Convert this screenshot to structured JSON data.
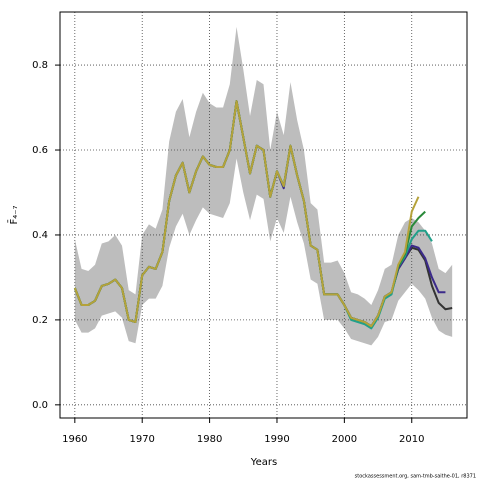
{
  "chart_data": {
    "type": "line",
    "x_label": "Years",
    "y_label": "F̄₄₋₇",
    "footnote": "stockassessment.org, sam-tmb-saithe-01, r8371",
    "x": [
      1960,
      1961,
      1962,
      1963,
      1964,
      1965,
      1966,
      1967,
      1968,
      1969,
      1970,
      1971,
      1972,
      1973,
      1974,
      1975,
      1976,
      1977,
      1978,
      1979,
      1980,
      1981,
      1982,
      1983,
      1984,
      1985,
      1986,
      1987,
      1988,
      1989,
      1990,
      1991,
      1992,
      1993,
      1994,
      1995,
      1996,
      1997,
      1998,
      1999,
      2000,
      2001,
      2002,
      2003,
      2004,
      2005,
      2006,
      2007,
      2008,
      2009,
      2010,
      2011,
      2012,
      2013,
      2014,
      2015,
      2016
    ],
    "band": {
      "color": "#bdbdbd",
      "upper": [
        0.39,
        0.32,
        0.315,
        0.33,
        0.38,
        0.385,
        0.4,
        0.375,
        0.27,
        0.26,
        0.4,
        0.425,
        0.415,
        0.46,
        0.62,
        0.69,
        0.72,
        0.63,
        0.69,
        0.735,
        0.71,
        0.7,
        0.7,
        0.755,
        0.89,
        0.79,
        0.68,
        0.765,
        0.755,
        0.6,
        0.69,
        0.635,
        0.76,
        0.67,
        0.6,
        0.475,
        0.46,
        0.335,
        0.335,
        0.34,
        0.31,
        0.265,
        0.26,
        0.25,
        0.235,
        0.27,
        0.32,
        0.33,
        0.4,
        0.43,
        0.44,
        0.43,
        0.41,
        0.38,
        0.32,
        0.31,
        0.33
      ],
      "lower": [
        0.2,
        0.17,
        0.17,
        0.18,
        0.21,
        0.215,
        0.22,
        0.205,
        0.15,
        0.145,
        0.235,
        0.25,
        0.25,
        0.28,
        0.37,
        0.42,
        0.45,
        0.4,
        0.435,
        0.465,
        0.45,
        0.445,
        0.44,
        0.475,
        0.58,
        0.5,
        0.435,
        0.495,
        0.485,
        0.385,
        0.44,
        0.405,
        0.49,
        0.43,
        0.38,
        0.295,
        0.285,
        0.2,
        0.2,
        0.2,
        0.18,
        0.155,
        0.15,
        0.145,
        0.14,
        0.16,
        0.195,
        0.2,
        0.245,
        0.265,
        0.285,
        0.27,
        0.25,
        0.205,
        0.175,
        0.165,
        0.16
      ]
    },
    "series": [
      {
        "color": "#333333",
        "values": [
          0.275,
          0.235,
          0.235,
          0.245,
          0.28,
          0.285,
          0.295,
          0.275,
          0.2,
          0.195,
          0.305,
          0.325,
          0.32,
          0.36,
          0.48,
          0.54,
          0.57,
          0.5,
          0.55,
          0.585,
          0.565,
          0.56,
          0.56,
          0.6,
          0.715,
          0.63,
          0.545,
          0.61,
          0.6,
          0.49,
          0.55,
          0.515,
          0.61,
          0.54,
          0.48,
          0.375,
          0.365,
          0.26,
          0.26,
          0.26,
          0.235,
          0.205,
          0.2,
          0.195,
          0.185,
          0.21,
          0.255,
          0.265,
          0.32,
          0.345,
          0.37,
          0.365,
          0.34,
          0.28,
          0.24,
          0.225,
          0.228
        ]
      },
      {
        "color": "#3b2a8a",
        "values": [
          0.275,
          0.235,
          0.235,
          0.245,
          0.28,
          0.285,
          0.295,
          0.275,
          0.2,
          0.195,
          0.305,
          0.325,
          0.32,
          0.36,
          0.48,
          0.54,
          0.57,
          0.5,
          0.55,
          0.585,
          0.565,
          0.56,
          0.56,
          0.6,
          0.715,
          0.63,
          0.545,
          0.61,
          0.6,
          0.49,
          0.55,
          0.51,
          0.61,
          0.54,
          0.48,
          0.375,
          0.365,
          0.26,
          0.26,
          0.26,
          0.235,
          0.205,
          0.2,
          0.195,
          0.185,
          0.21,
          0.255,
          0.265,
          0.32,
          0.345,
          0.375,
          0.37,
          0.345,
          0.3,
          0.265,
          0.265,
          null
        ]
      },
      {
        "color": "#21a08a",
        "values": [
          0.275,
          0.235,
          0.235,
          0.245,
          0.28,
          0.285,
          0.295,
          0.275,
          0.2,
          0.195,
          0.305,
          0.325,
          0.32,
          0.36,
          0.48,
          0.54,
          0.57,
          0.5,
          0.55,
          0.585,
          0.565,
          0.56,
          0.56,
          0.6,
          0.715,
          0.63,
          0.545,
          0.61,
          0.6,
          0.49,
          0.55,
          0.515,
          0.61,
          0.54,
          0.48,
          0.375,
          0.365,
          0.26,
          0.26,
          0.26,
          0.235,
          0.2,
          0.195,
          0.19,
          0.18,
          0.205,
          0.25,
          0.26,
          0.325,
          0.35,
          0.39,
          0.41,
          0.41,
          0.385,
          null,
          null,
          null
        ]
      },
      {
        "color": "#2a8a3a",
        "values": [
          0.275,
          0.235,
          0.235,
          0.245,
          0.28,
          0.285,
          0.295,
          0.275,
          0.2,
          0.195,
          0.305,
          0.325,
          0.32,
          0.36,
          0.48,
          0.54,
          0.57,
          0.5,
          0.55,
          0.585,
          0.565,
          0.56,
          0.56,
          0.6,
          0.715,
          0.63,
          0.545,
          0.61,
          0.6,
          0.49,
          0.55,
          0.515,
          0.61,
          0.54,
          0.48,
          0.375,
          0.365,
          0.26,
          0.26,
          0.26,
          0.235,
          0.205,
          0.2,
          0.195,
          0.185,
          0.21,
          0.255,
          0.265,
          0.325,
          0.355,
          0.42,
          0.44,
          0.455,
          null,
          null,
          null,
          null
        ]
      },
      {
        "color": "#b5a23a",
        "values": [
          0.275,
          0.235,
          0.235,
          0.245,
          0.28,
          0.285,
          0.295,
          0.275,
          0.2,
          0.195,
          0.305,
          0.325,
          0.32,
          0.36,
          0.48,
          0.54,
          0.57,
          0.5,
          0.55,
          0.585,
          0.565,
          0.56,
          0.56,
          0.6,
          0.715,
          0.63,
          0.545,
          0.61,
          0.6,
          0.49,
          0.55,
          0.515,
          0.61,
          0.54,
          0.48,
          0.375,
          0.365,
          0.26,
          0.26,
          0.26,
          0.235,
          0.205,
          0.2,
          0.195,
          0.185,
          0.21,
          0.255,
          0.265,
          0.33,
          0.36,
          0.455,
          0.49,
          null,
          null,
          null,
          null,
          null
        ]
      }
    ],
    "xlim": [
      1957.8,
      2018.2
    ],
    "ylim": [
      -0.031,
      0.925
    ],
    "xticks": [
      1960,
      1970,
      1980,
      1990,
      2000,
      2010
    ],
    "yticks": [
      {
        "value": 0,
        "label": "0.0"
      },
      0.2,
      0.4,
      0.6,
      0.8
    ],
    "grid": true
  }
}
